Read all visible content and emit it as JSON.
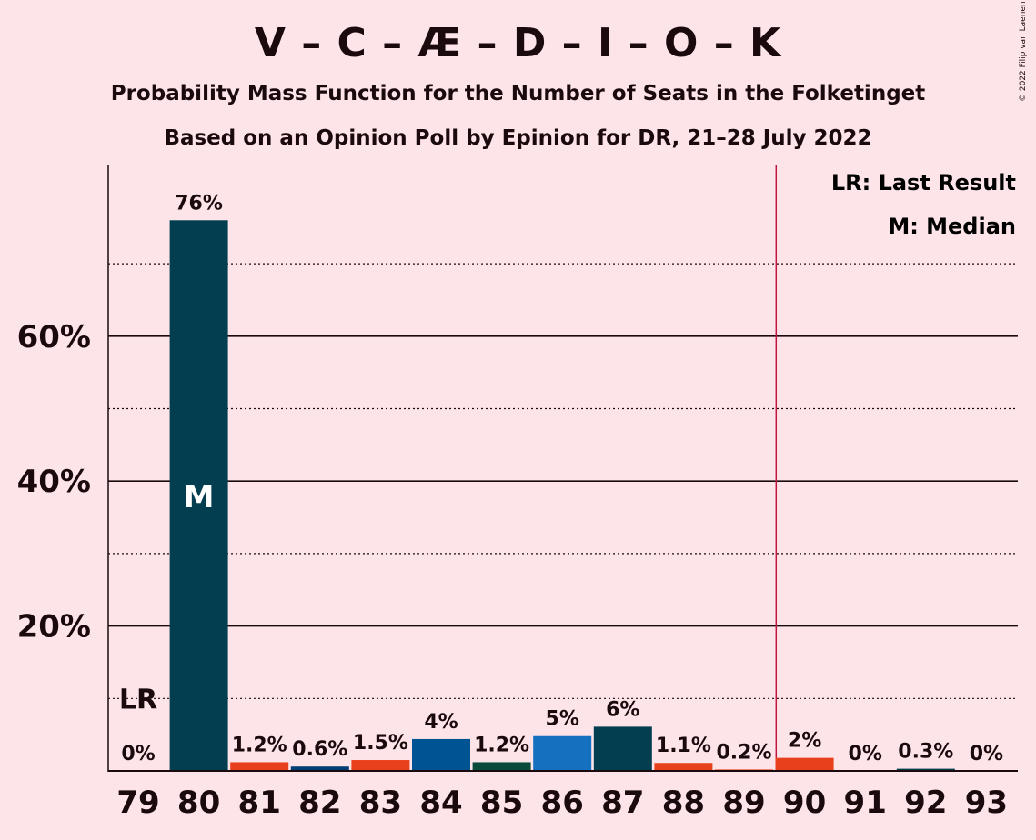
{
  "chart_data": {
    "type": "bar",
    "title": "V – C – Æ – D – I – O – K",
    "subtitle": "Probability Mass Function for the Number of Seats in the Folketinget",
    "subtitle2": "Based on an Opinion Poll by Epinion for DR, 21–28 July 2022",
    "copyright": "© 2022 Filip van Laenen",
    "categories": [
      "79",
      "80",
      "81",
      "82",
      "83",
      "84",
      "85",
      "86",
      "87",
      "88",
      "89",
      "90",
      "91",
      "92",
      "93"
    ],
    "values": [
      0,
      76,
      1.2,
      0.6,
      1.5,
      4.4,
      1.2,
      4.8,
      6.1,
      1.1,
      0.2,
      1.8,
      0,
      0.3,
      0
    ],
    "value_labels": [
      "0%",
      "76%",
      "1.2%",
      "0.6%",
      "1.5%",
      "4%",
      "1.2%",
      "5%",
      "6%",
      "1.1%",
      "0.2%",
      "2%",
      "0%",
      "0.3%",
      "0%"
    ],
    "bar_colors": [
      "#023e50",
      "#023e50",
      "#e8401c",
      "#003d74",
      "#e8401c",
      "#005392",
      "#0a4a3a",
      "#1571c0",
      "#023e50",
      "#e8401c",
      "#e8401c",
      "#e8401c",
      "#e8401c",
      "#023e50",
      "#023e50"
    ],
    "ylim": [
      0,
      83
    ],
    "yticks": [
      20,
      40,
      60
    ],
    "ytick_labels": [
      "20%",
      "40%",
      "60%"
    ],
    "minor_gridlines": [
      10,
      30,
      50,
      70
    ],
    "grid": true,
    "median_seat": "80",
    "median_marker": "M",
    "last_result_seat": "79",
    "last_result_marker": "LR",
    "last_result_level": 10,
    "majority_line_between": [
      "89",
      "90"
    ],
    "majority_line_color": "#c0163e",
    "legend": {
      "placement": "top-right",
      "items": [
        "LR: Last Result",
        "M: Median"
      ]
    }
  }
}
